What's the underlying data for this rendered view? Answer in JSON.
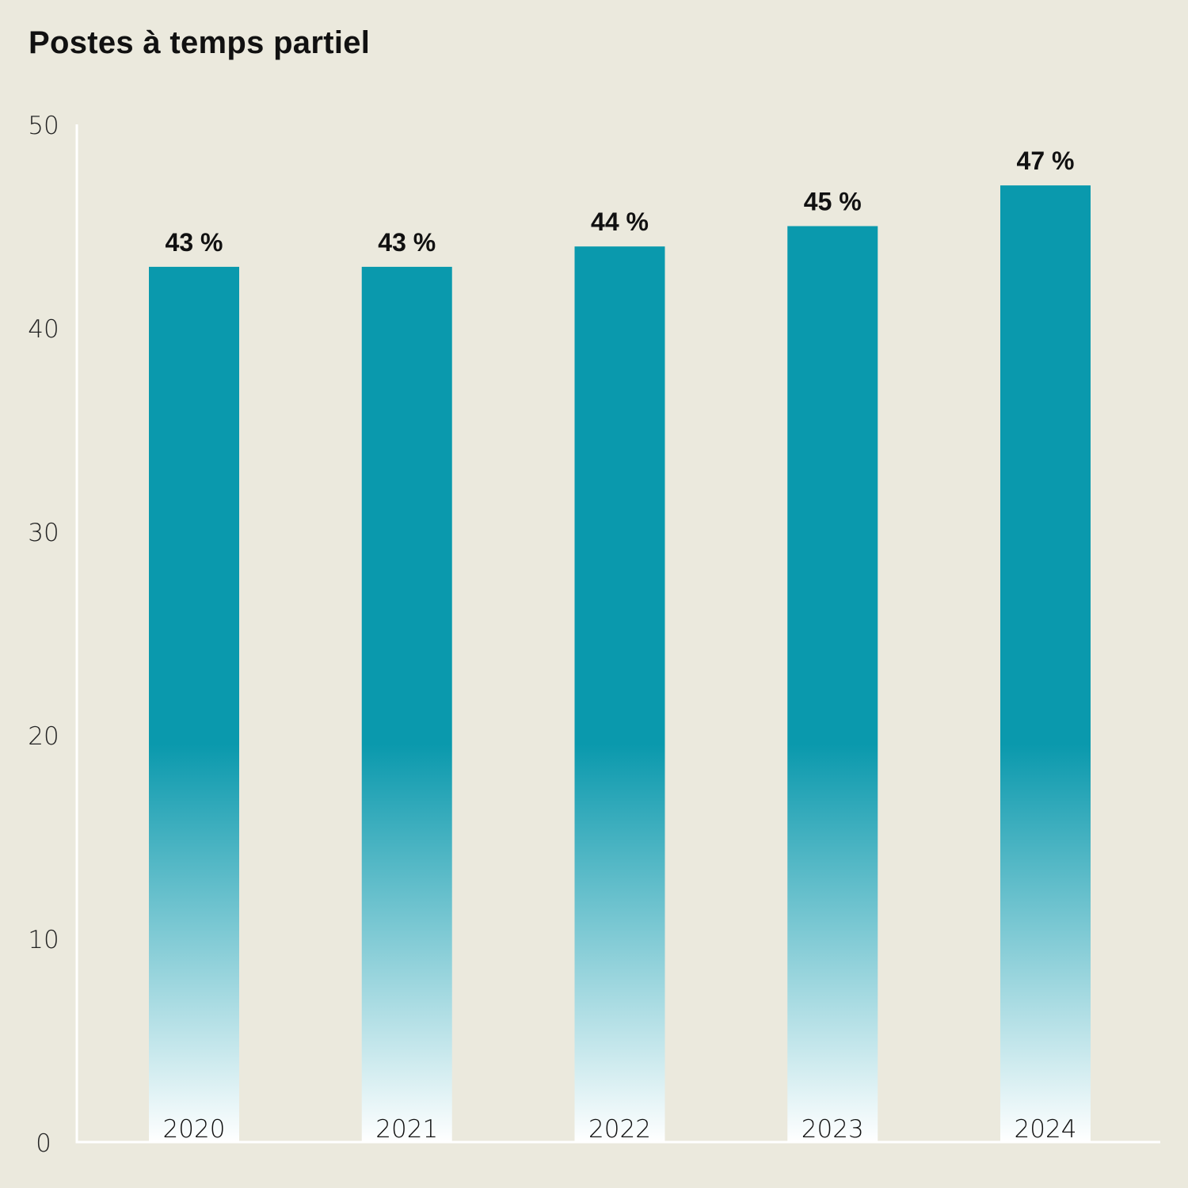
{
  "chart_data": {
    "type": "bar",
    "title": "Postes à temps partiel",
    "categories": [
      "2020",
      "2021",
      "2022",
      "2023",
      "2024"
    ],
    "values": [
      43,
      43,
      44,
      45,
      47
    ],
    "data_labels": [
      "43 %",
      "43 %",
      "44 %",
      "45 %",
      "47 %"
    ],
    "ylim": [
      0,
      50
    ],
    "yticks": [
      "0",
      "10",
      "20",
      "30",
      "40",
      "50"
    ],
    "grid": false,
    "legend": "none",
    "bar_color": "#0A99AD",
    "bar_fade_color": "#FFFFFF",
    "background": "#EBE9DD",
    "axis_color": "#FFFFFF"
  }
}
